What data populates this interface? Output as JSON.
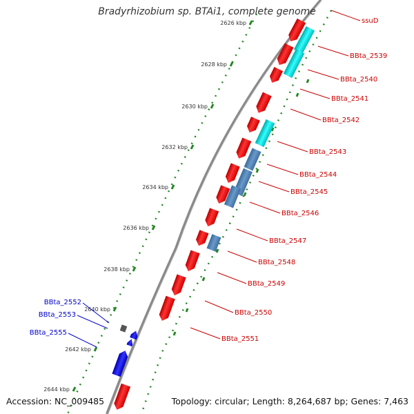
{
  "title": "Bradyrhizobium sp. BTAi1, complete genome",
  "footer": {
    "accession": "Accession: NC_009485",
    "summary": "Topology: circular; Length: 8,264,687 bp; Genes: 7,463"
  },
  "ticks": [
    {
      "label": "2626 kbp"
    },
    {
      "label": "2628 kbp"
    },
    {
      "label": "2630 kbp"
    },
    {
      "label": "2632 kbp"
    },
    {
      "label": "2634 kbp"
    },
    {
      "label": "2636 kbp"
    },
    {
      "label": "2638 kbp"
    },
    {
      "label": "2640 kbp"
    },
    {
      "label": "2642 kbp"
    },
    {
      "label": "2644 kbp"
    }
  ],
  "genes_forward": [
    {
      "label": "ssuD"
    },
    {
      "label": "BBta_2539"
    },
    {
      "label": "BBta_2540"
    },
    {
      "label": "BBta_2541"
    },
    {
      "label": "BBta_2542"
    },
    {
      "label": "BBta_2543"
    },
    {
      "label": "BBta_2544"
    },
    {
      "label": "BBta_2545"
    },
    {
      "label": "BBta_2546"
    },
    {
      "label": "BBta_2547"
    },
    {
      "label": "BBta_2548"
    },
    {
      "label": "BBta_2549"
    },
    {
      "label": "BBta_2550"
    },
    {
      "label": "BBta_2551"
    }
  ],
  "genes_reverse": [
    {
      "label": "BBta_2552"
    },
    {
      "label": "BBta_2553"
    },
    {
      "label": "BBta_2555"
    }
  ],
  "colors": {
    "cds": "#ff0000",
    "cyan_feature": "#00cccc",
    "steelblue_feature": "#4d7fb3",
    "reverse_cds": "#0000dd",
    "other_feature": "#555555",
    "backbone": "#888888",
    "tick": "#228822",
    "forward_label": "#cc0000",
    "reverse_label": "#0000cc"
  }
}
